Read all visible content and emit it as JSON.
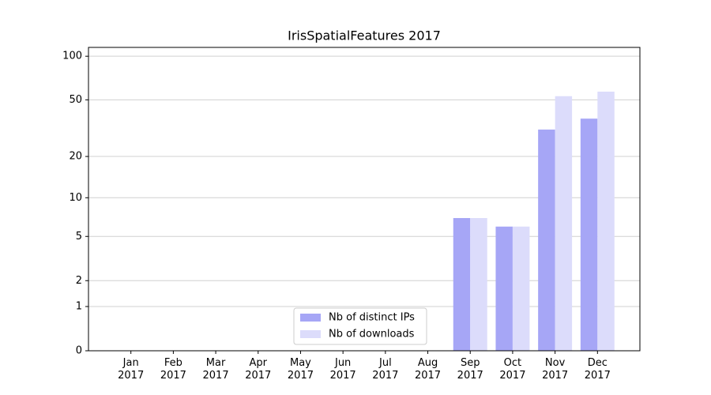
{
  "chart_data": {
    "type": "bar",
    "title": "IrisSpatialFeatures 2017",
    "categories": [
      "Jan\n2017",
      "Feb\n2017",
      "Mar\n2017",
      "Apr\n2017",
      "May\n2017",
      "Jun\n2017",
      "Jul\n2017",
      "Aug\n2017",
      "Sep\n2017",
      "Oct\n2017",
      "Nov\n2017",
      "Dec\n2017"
    ],
    "series": [
      {
        "name": "Nb of distinct IPs",
        "color": "#a6a6f6",
        "values": [
          0,
          0,
          0,
          0,
          0,
          0,
          0,
          0,
          7,
          6,
          31,
          37
        ]
      },
      {
        "name": "Nb of downloads",
        "color": "#dcdcfb",
        "values": [
          0,
          0,
          0,
          0,
          0,
          0,
          0,
          0,
          7,
          6,
          53,
          57
        ]
      }
    ],
    "y_scale": "log1p",
    "ylim": [
      0,
      115
    ],
    "yticks": [
      0,
      1,
      2,
      5,
      10,
      20,
      50,
      100
    ],
    "grid": true,
    "legend": "lower center"
  }
}
